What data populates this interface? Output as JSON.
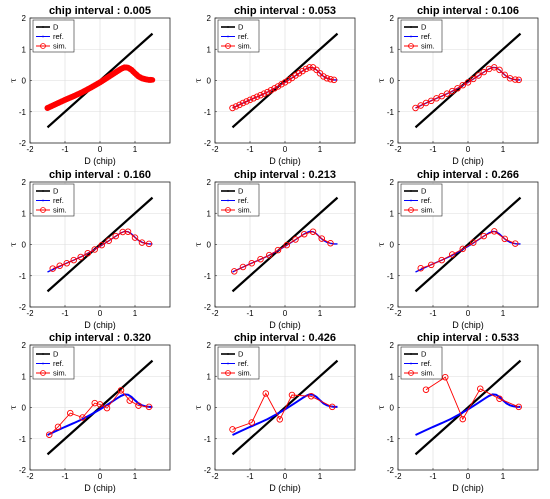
{
  "colors": {
    "D": "#000000",
    "ref": "#0000ff",
    "sim": "#ff0000"
  },
  "chart_data": {
    "type": "line",
    "layout": "3x3 small multiples",
    "xlabel": "D (chip)",
    "ylabel": "τ",
    "xlim": [
      -2,
      2
    ],
    "ylim": [
      -2,
      2
    ],
    "xticks": [
      -2,
      -1,
      0,
      1
    ],
    "yticks": [
      -2,
      -1,
      0,
      1,
      2
    ],
    "grid": true,
    "legend": {
      "position": "top-left",
      "entries": [
        "D",
        "ref.",
        "sim."
      ]
    },
    "series_D": {
      "name": "D",
      "x": [
        -1.5,
        1.5
      ],
      "y": [
        -1.5,
        1.5
      ]
    },
    "series_ref": {
      "name": "ref.",
      "x": [
        -1.5,
        -1.25,
        -1.0,
        -0.75,
        -0.5,
        -0.25,
        0.0,
        0.25,
        0.5,
        0.6,
        0.7,
        0.8,
        0.9,
        1.0,
        1.1,
        1.2,
        1.3,
        1.4,
        1.5
      ],
      "y": [
        -0.88,
        -0.75,
        -0.62,
        -0.5,
        -0.37,
        -0.22,
        -0.06,
        0.12,
        0.3,
        0.37,
        0.42,
        0.41,
        0.34,
        0.23,
        0.13,
        0.07,
        0.04,
        0.02,
        0.02
      ]
    },
    "panels": [
      {
        "title": "chip interval : 0.005",
        "sim": {
          "dense": true
        }
      },
      {
        "title": "chip interval : 0.053",
        "sim": {
          "x": [
            -1.5,
            -1.4,
            -1.3,
            -1.2,
            -1.1,
            -1.0,
            -0.9,
            -0.8,
            -0.7,
            -0.6,
            -0.5,
            -0.4,
            -0.3,
            -0.2,
            -0.1,
            0.0,
            0.1,
            0.2,
            0.3,
            0.4,
            0.5,
            0.6,
            0.7,
            0.8,
            0.9,
            1.0,
            1.1,
            1.2,
            1.3,
            1.4
          ],
          "y": [
            -0.88,
            -0.83,
            -0.78,
            -0.72,
            -0.67,
            -0.62,
            -0.57,
            -0.52,
            -0.47,
            -0.42,
            -0.37,
            -0.31,
            -0.25,
            -0.19,
            -0.12,
            -0.06,
            0.01,
            0.08,
            0.16,
            0.23,
            0.3,
            0.37,
            0.42,
            0.42,
            0.34,
            0.23,
            0.13,
            0.07,
            0.04,
            0.02
          ]
        }
      },
      {
        "title": "chip interval : 0.106",
        "sim": {
          "x": [
            -1.5,
            -1.35,
            -1.2,
            -1.05,
            -0.9,
            -0.75,
            -0.6,
            -0.45,
            -0.3,
            -0.15,
            0.0,
            0.15,
            0.3,
            0.45,
            0.6,
            0.75,
            0.9,
            1.05,
            1.2,
            1.35,
            1.45
          ],
          "y": [
            -0.88,
            -0.8,
            -0.72,
            -0.65,
            -0.57,
            -0.5,
            -0.42,
            -0.34,
            -0.25,
            -0.15,
            -0.06,
            0.05,
            0.16,
            0.27,
            0.37,
            0.42,
            0.34,
            0.18,
            0.07,
            0.03,
            0.02
          ]
        }
      },
      {
        "title": "chip interval : 0.160",
        "sim": {
          "x": [
            -1.35,
            -1.15,
            -0.95,
            -0.75,
            -0.55,
            -0.35,
            -0.15,
            0.05,
            0.25,
            0.45,
            0.65,
            0.8,
            1.0,
            1.2,
            1.4
          ],
          "y": [
            -0.77,
            -0.68,
            -0.6,
            -0.5,
            -0.4,
            -0.28,
            -0.16,
            -0.02,
            0.12,
            0.27,
            0.4,
            0.41,
            0.22,
            0.06,
            0.02
          ]
        }
      },
      {
        "title": "chip interval : 0.213",
        "sim": {
          "x": [
            -1.45,
            -1.2,
            -0.95,
            -0.7,
            -0.45,
            -0.2,
            0.05,
            0.3,
            0.55,
            0.8,
            1.05,
            1.3
          ],
          "y": [
            -0.86,
            -0.72,
            -0.6,
            -0.47,
            -0.34,
            -0.18,
            -0.02,
            0.16,
            0.33,
            0.41,
            0.19,
            0.04
          ]
        }
      },
      {
        "title": "chip interval : 0.266",
        "sim": {
          "x": [
            -1.35,
            -1.05,
            -0.75,
            -0.45,
            -0.15,
            0.15,
            0.45,
            0.75,
            1.05,
            1.35
          ],
          "y": [
            -0.76,
            -0.65,
            -0.5,
            -0.32,
            -0.14,
            0.06,
            0.27,
            0.42,
            0.18,
            0.03
          ]
        }
      },
      {
        "title": "chip interval : 0.320",
        "sim": {
          "x": [
            -1.45,
            -1.2,
            -0.85,
            -0.5,
            -0.15,
            0.0,
            0.2,
            0.6,
            0.85,
            1.1,
            1.4
          ],
          "y": [
            -0.87,
            -0.62,
            -0.18,
            -0.32,
            0.14,
            0.1,
            -0.02,
            0.55,
            0.22,
            0.06,
            0.02
          ]
        }
      },
      {
        "title": "chip interval : 0.426",
        "sim": {
          "x": [
            -1.5,
            -0.95,
            -0.55,
            -0.15,
            0.2,
            0.75,
            1.35
          ],
          "y": [
            -0.7,
            -0.48,
            0.45,
            -0.38,
            0.4,
            0.36,
            0.02
          ]
        }
      },
      {
        "title": "chip interval : 0.533",
        "sim": {
          "x": [
            -1.2,
            -0.65,
            -0.15,
            0.35,
            0.9,
            1.45
          ],
          "y": [
            0.57,
            0.97,
            -0.37,
            0.6,
            0.28,
            0.02
          ]
        }
      }
    ]
  }
}
